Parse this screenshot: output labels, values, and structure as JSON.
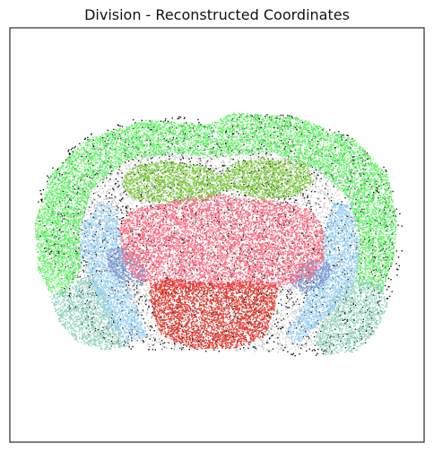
{
  "chart_data": {
    "type": "scatter",
    "title": "Division - Reconstructed Coordinates",
    "xlabel": "",
    "ylabel": "",
    "axes_visible": false,
    "grid": false,
    "legend": "none",
    "background": "#ffffff",
    "frame_color": "#000000",
    "regions": [
      {
        "key": "outline",
        "color": "#111111"
      },
      {
        "key": "fiber-tracts",
        "color": "#c8c8c8"
      },
      {
        "key": "isocortex",
        "color": "#66f06a"
      },
      {
        "key": "hippocampus",
        "color": "#7dcc3f"
      },
      {
        "key": "cortical-subplate",
        "color": "#93d4c0"
      },
      {
        "key": "striatum",
        "color": "#97d1f7"
      },
      {
        "key": "pallidum",
        "color": "#8598cd"
      },
      {
        "key": "thalamus",
        "color": "#ff6c82"
      },
      {
        "key": "hypothalamus",
        "color": "#e43c32"
      }
    ]
  }
}
